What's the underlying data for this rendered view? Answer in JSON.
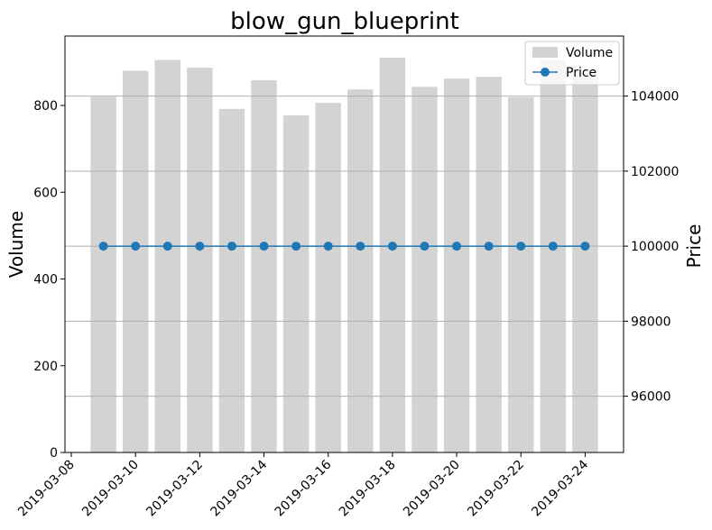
{
  "chart_data": {
    "type": "bar+line",
    "title": "blow_gun_blueprint",
    "x": [
      "2019-03-09",
      "2019-03-10",
      "2019-03-11",
      "2019-03-12",
      "2019-03-13",
      "2019-03-14",
      "2019-03-15",
      "2019-03-16",
      "2019-03-17",
      "2019-03-18",
      "2019-03-19",
      "2019-03-20",
      "2019-03-21",
      "2019-03-22",
      "2019-03-23",
      "2019-03-24"
    ],
    "x_ticks": [
      "2019-03-08",
      "2019-03-10",
      "2019-03-12",
      "2019-03-14",
      "2019-03-16",
      "2019-03-18",
      "2019-03-20",
      "2019-03-22",
      "2019-03-24"
    ],
    "xlim": [
      "2019-03-08",
      "2019-03-25"
    ],
    "series": [
      {
        "name": "Volume",
        "type": "bar",
        "axis": "left",
        "color": "#d3d3d3",
        "values": [
          820,
          880,
          905,
          887,
          792,
          858,
          777,
          806,
          837,
          910,
          843,
          862,
          866,
          819,
          905,
          880
        ]
      },
      {
        "name": "Price",
        "type": "line",
        "axis": "right",
        "color": "#1f77b4",
        "values": [
          100000,
          100000,
          100000,
          100000,
          100000,
          100000,
          100000,
          100000,
          100000,
          100000,
          100000,
          100000,
          100000,
          100000,
          100000,
          100000
        ]
      }
    ],
    "ylabel_left": "Volume",
    "ylabel_right": "Price",
    "ylim_left": [
      0,
      960
    ],
    "ylim_right": [
      94500,
      105600
    ],
    "yticks_left": [
      0,
      200,
      400,
      600,
      800
    ],
    "yticks_right": [
      96000,
      98000,
      100000,
      102000,
      104000
    ],
    "grid": "horizontal lines at right-axis ticks",
    "legend": "top-right"
  }
}
